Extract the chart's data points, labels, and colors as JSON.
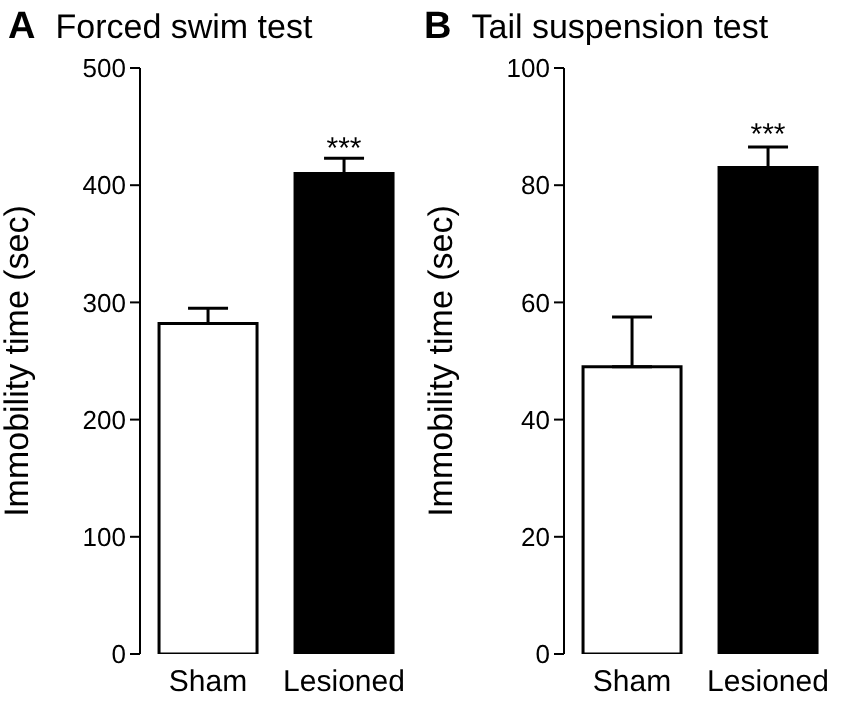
{
  "chart_data": [
    {
      "type": "bar",
      "title": "Forced swim test",
      "annotations": [
        "A",
        {
          "text": "***",
          "x": "Lesioned",
          "y": 423
        }
      ],
      "ylabel": "Immobility time (sec)",
      "categories": [
        "Sham",
        "Lesioned"
      ],
      "values": [
        282,
        410
      ],
      "colors": [
        "#ffffff",
        "#000000"
      ],
      "errors": [
        [
          282,
          295
        ],
        [
          410,
          423
        ]
      ],
      "ylim": [
        0,
        500
      ],
      "yticks": [
        0,
        100,
        200,
        300,
        400,
        500
      ],
      "grid": false
    },
    {
      "type": "bar",
      "title": "Tail suspension test",
      "annotations": [
        "B",
        {
          "text": "***",
          "x": "Lesioned",
          "y": 87
        }
      ],
      "ylabel": "Immobility time (sec)",
      "categories": [
        "Sham",
        "Lesioned"
      ],
      "values": [
        49,
        83
      ],
      "colors": [
        "#ffffff",
        "#000000"
      ],
      "errors": [
        [
          49,
          57.5
        ],
        [
          83,
          86.5
        ]
      ],
      "ylim": [
        0,
        100
      ],
      "yticks": [
        0,
        20,
        40,
        60,
        80,
        100
      ],
      "grid": false
    }
  ]
}
